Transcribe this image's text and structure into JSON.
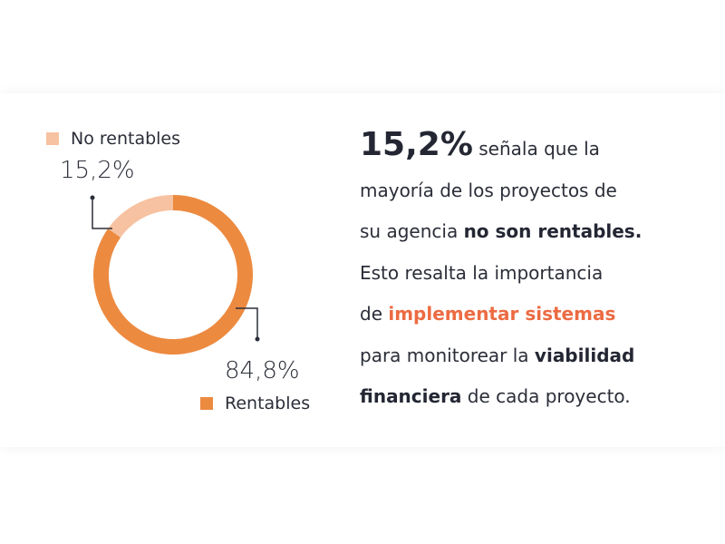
{
  "chart_data": {
    "type": "pie",
    "donut": true,
    "slices": [
      {
        "label": "No rentables",
        "value": 15.2,
        "value_label": "15,2%",
        "color": "#f7c2a1"
      },
      {
        "label": "Rentables",
        "value": 84.8,
        "value_label": "84,8%",
        "color": "#ec8a40"
      }
    ]
  },
  "text": {
    "headline": "15,2%",
    "line1_rest": " señala que  la",
    "line2": "mayoría de los proyectos de",
    "line3_a": "su agencia ",
    "line3_b": "no son rentables.",
    "line4": "Esto resalta la importancia",
    "line5_a": "de ",
    "line5_b": "implementar sistemas",
    "line6_a": "para monitorear la ",
    "line6_b": "viabilidad",
    "line7_a": "financiera",
    "line7_b": " de cada proyecto."
  }
}
